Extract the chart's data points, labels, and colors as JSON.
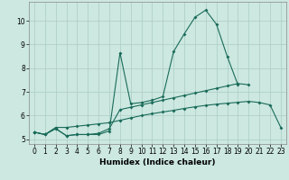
{
  "xlabel": "Humidex (Indice chaleur)",
  "background_color": "#cce8e0",
  "grid_color": "#aaccC4",
  "line_color": "#1a6b5a",
  "x_values": [
    0,
    1,
    2,
    3,
    4,
    5,
    6,
    7,
    8,
    9,
    10,
    11,
    12,
    13,
    14,
    15,
    16,
    17,
    18,
    19,
    20,
    21,
    22,
    23
  ],
  "series1": [
    5.3,
    5.2,
    5.45,
    5.15,
    5.2,
    5.2,
    5.2,
    5.35,
    8.65,
    6.5,
    6.55,
    6.65,
    6.8,
    8.7,
    9.45,
    10.15,
    10.45,
    9.85,
    8.5,
    7.3,
    null,
    null,
    null,
    null
  ],
  "series2": [
    5.3,
    5.2,
    5.45,
    5.15,
    5.2,
    5.2,
    5.25,
    5.45,
    6.25,
    6.35,
    6.45,
    6.55,
    6.65,
    6.75,
    6.85,
    6.95,
    7.05,
    7.15,
    7.25,
    7.35,
    7.3,
    null,
    null,
    null
  ],
  "series3": [
    5.3,
    5.2,
    5.5,
    5.5,
    5.55,
    5.6,
    5.65,
    5.7,
    5.8,
    5.9,
    6.0,
    6.08,
    6.15,
    6.22,
    6.3,
    6.37,
    6.43,
    6.48,
    6.52,
    6.56,
    6.6,
    6.55,
    6.45,
    5.5
  ],
  "ylim": [
    4.8,
    10.8
  ],
  "xlim": [
    -0.5,
    23.5
  ],
  "yticks": [
    5,
    6,
    7,
    8,
    9,
    10
  ],
  "xticks": [
    0,
    1,
    2,
    3,
    4,
    5,
    6,
    7,
    8,
    9,
    10,
    11,
    12,
    13,
    14,
    15,
    16,
    17,
    18,
    19,
    20,
    21,
    22,
    23
  ],
  "tick_fontsize": 5.5,
  "xlabel_fontsize": 6.5
}
